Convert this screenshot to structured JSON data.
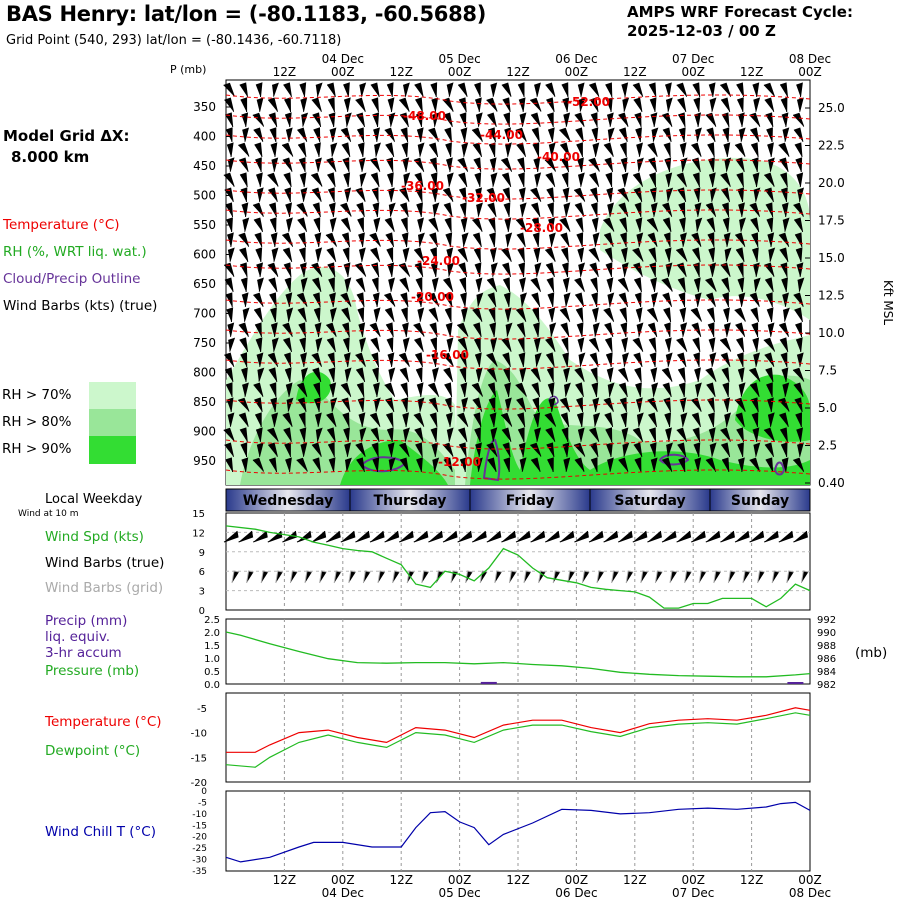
{
  "header": {
    "title": "BAS Henry:  lat/lon = (-80.1183, -60.5688)",
    "subtitle": "Grid Point (540, 293) lat/lon = (-80.1436, -60.7118)",
    "cycle_line1": "AMPS WRF Forecast Cycle:",
    "cycle_line2": "2025-12-03 / 00  Z"
  },
  "legend": {
    "grid_label": "Model Grid ΔX:",
    "grid_value": "8.000 km",
    "temperature": "Temperature (°C)",
    "rh": "RH (%, WRT liq. wat.)",
    "cloud": "Cloud/Precip Outline",
    "wind": "Wind Barbs (kts) (true)",
    "rh70": "RH > 70%",
    "rh80": "RH > 80%",
    "rh90": "RH > 90%",
    "local_weekday": "Local Weekday",
    "wind10m": "Wind at 10 m",
    "wind_spd": "Wind Spd (kts)",
    "wind_barbs_true": "Wind Barbs (true)",
    "wind_barbs_grid": "Wind Barbs (grid)",
    "precip": "Precip (mm)",
    "liq": "liq. equiv.",
    "accum": "3-hr accum",
    "pressure": "Pressure (mb)",
    "mb_unit": "(mb)",
    "temp2": "Temperature (°C)",
    "dewpoint": "Dewpoint (°C)",
    "windchill": "Wind Chill T (°C)"
  },
  "colors": {
    "rh70": "#ccf7cc",
    "rh80": "#99e699",
    "rh90": "#33dd33",
    "temperature": "#ee0000",
    "rh_text": "#22aa22",
    "cloud": "#663399",
    "grid_barbs": "#aaaaaa",
    "pressure": "#22bb22",
    "windchill": "#0000aa",
    "precip_bar": "#552299"
  },
  "chart_data": [
    {
      "type": "area",
      "name": "time-height cross section",
      "ylabel": "P (mb)",
      "y_ticks": [
        350,
        400,
        450,
        500,
        550,
        600,
        650,
        700,
        750,
        800,
        850,
        900,
        950
      ],
      "right_axis_label": "Kft MSL",
      "right_ticks": [
        "25.0",
        "22.5",
        "20.0",
        "17.5",
        "15.0",
        "12.5",
        "10.0",
        "7.5",
        "5.0",
        "2.5",
        "0.40"
      ],
      "x_time_labels": [
        "12Z",
        "00Z",
        "12Z",
        "00Z",
        "12Z",
        "00Z",
        "12Z",
        "00Z",
        "12Z",
        "00Z"
      ],
      "x_date_labels": [
        "04 Dec",
        "05 Dec",
        "06 Dec",
        "07 Dec",
        "08 Dec"
      ],
      "temperature_contour_labels": [
        "-52.00",
        "-48.00",
        "-44.00",
        "-40.00",
        "-36.00",
        "-32.00",
        "-28.00",
        "-24.00",
        "-20.00",
        "-16.00",
        "-12.00"
      ]
    },
    {
      "type": "table",
      "name": "local weekday",
      "days": [
        "Wednesday",
        "Thursday",
        "Friday",
        "Saturday",
        "Sunday"
      ]
    },
    {
      "type": "line",
      "name": "10 m wind speed",
      "ylabel": "Wind Spd (kts)",
      "y_ticks": [
        0,
        3,
        6,
        9,
        12,
        15
      ],
      "ylim": [
        0,
        15
      ],
      "x_hours": [
        0,
        6,
        9,
        15,
        18,
        21,
        24,
        27,
        30,
        33,
        36,
        39,
        42,
        45,
        48,
        51,
        54,
        57,
        60,
        63,
        66,
        69,
        72,
        75,
        78,
        81,
        84,
        87,
        90,
        93,
        96,
        99,
        102,
        105,
        108,
        111,
        114,
        117,
        120
      ],
      "values": [
        13,
        12.5,
        12,
        11.3,
        10.5,
        10,
        9.5,
        9.2,
        9,
        8,
        7,
        4,
        3.5,
        6,
        5.5,
        4.5,
        6.5,
        9.5,
        8.5,
        6.5,
        5,
        4.6,
        4.2,
        3.5,
        3.2,
        3,
        2.8,
        2,
        0.3,
        0.3,
        1,
        1,
        1.8,
        1.8,
        1.8,
        0.5,
        1.8,
        4,
        3
      ]
    },
    {
      "type": "line",
      "name": "precip and pressure",
      "ylabel_left": "Precip (mm)",
      "ylabel_right": "Pressure (mb)",
      "y_ticks_left": [
        0.0,
        0.5,
        1.0,
        1.5,
        2.0,
        2.5
      ],
      "y_ticks_right": [
        982,
        984,
        986,
        988,
        990,
        992
      ],
      "ylim_left": [
        0,
        2.5
      ],
      "ylim_right": [
        982,
        992
      ],
      "pressure": {
        "x_hours": [
          0,
          3,
          9,
          15,
          21,
          27,
          33,
          39,
          45,
          51,
          57,
          63,
          69,
          75,
          81,
          87,
          93,
          99,
          105,
          111,
          117,
          120
        ],
        "values": [
          990,
          989.5,
          988.2,
          987,
          985.9,
          985.3,
          985.2,
          985.3,
          985.3,
          985.1,
          985.3,
          985,
          984.8,
          984.4,
          983.8,
          983.5,
          983.3,
          983.2,
          983.1,
          983.1,
          983.4,
          983.6
        ]
      },
      "precip_bars": [
        {
          "x_hours": 54,
          "value": 0.08
        },
        {
          "x_hours": 117,
          "value": 0.02
        }
      ]
    },
    {
      "type": "line",
      "name": "temperature and dewpoint",
      "y_ticks": [
        -20,
        -15,
        -10,
        -5
      ],
      "ylim": [
        -20,
        -2
      ],
      "x_hours": [
        0,
        6,
        9,
        15,
        21,
        27,
        33,
        36,
        39,
        45,
        51,
        57,
        63,
        69,
        75,
        81,
        87,
        93,
        99,
        105,
        111,
        117,
        120
      ],
      "series": [
        {
          "name": "Temperature",
          "values": [
            -14,
            -14,
            -12.5,
            -10,
            -9.5,
            -11,
            -12,
            -10.5,
            -9,
            -9.5,
            -11,
            -8.5,
            -7.5,
            -7.5,
            -9,
            -10,
            -8.2,
            -7.5,
            -7.2,
            -7.5,
            -6.5,
            -5,
            -5.5
          ]
        },
        {
          "name": "Dewpoint",
          "values": [
            -16.5,
            -17,
            -15,
            -12,
            -10.5,
            -12,
            -13,
            -11.5,
            -10,
            -10.5,
            -12,
            -9.5,
            -8.5,
            -8.5,
            -9.8,
            -10.8,
            -9,
            -8.3,
            -8,
            -8.3,
            -7.2,
            -6,
            -6.5
          ]
        }
      ]
    },
    {
      "type": "line",
      "name": "wind chill",
      "y_ticks": [
        -35,
        -30,
        -25,
        -20,
        -15,
        -10,
        -5,
        0
      ],
      "ylim": [
        -35,
        0
      ],
      "x_hours": [
        0,
        3,
        9,
        15,
        18,
        24,
        30,
        36,
        39,
        42,
        45,
        48,
        51,
        54,
        57,
        63,
        69,
        75,
        81,
        87,
        93,
        99,
        105,
        111,
        114,
        117,
        120
      ],
      "series": [
        {
          "name": "Wind Chill T",
          "values": [
            -29,
            -31,
            -29,
            -24.5,
            -22.5,
            -22.5,
            -24.5,
            -24.5,
            -16,
            -9.5,
            -9,
            -13.5,
            -16,
            -23.5,
            -19,
            -14,
            -8,
            -8.5,
            -10,
            -9.5,
            -8,
            -7.5,
            -8,
            -7,
            -5.5,
            -5,
            -8.5
          ]
        }
      ]
    }
  ]
}
